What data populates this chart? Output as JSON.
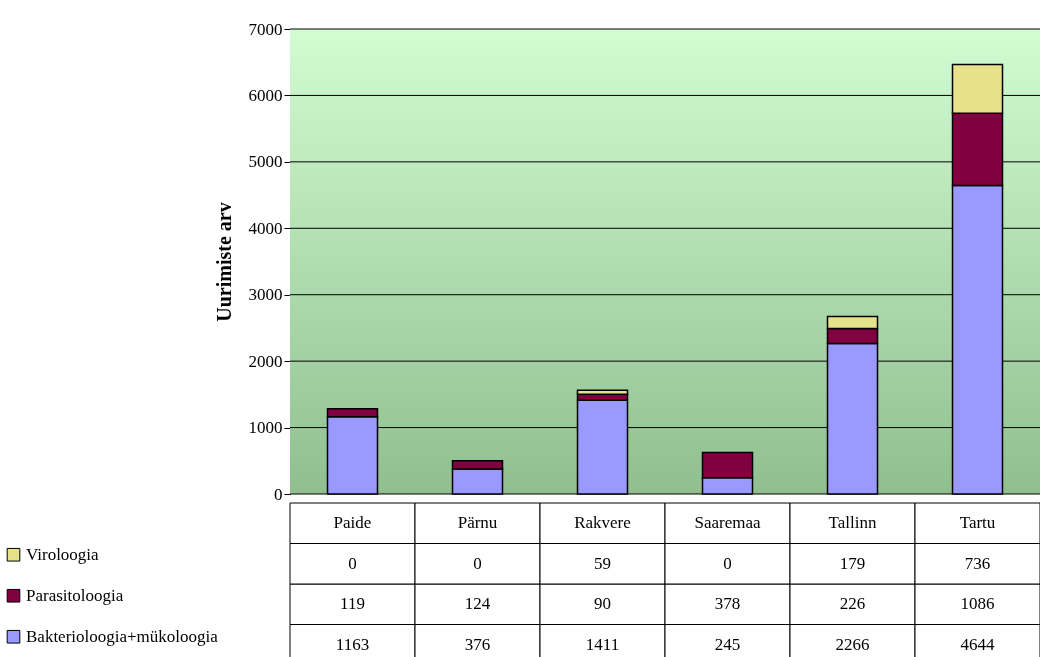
{
  "chart_data": {
    "type": "bar",
    "stacked": true,
    "ylabel": "Uurimiste arv",
    "categories": [
      "Paide",
      "Pärnu",
      "Rakvere",
      "Saaremaa",
      "Tallinn",
      "Tartu"
    ],
    "series": [
      {
        "name": "Bakterioloogia+mükoloogia",
        "color": "#9999ff",
        "values": [
          1163,
          376,
          1411,
          245,
          2266,
          4644
        ]
      },
      {
        "name": "Parasitoloogia",
        "color": "#800040",
        "values": [
          119,
          124,
          90,
          378,
          226,
          1086
        ]
      },
      {
        "name": "Viroloogia",
        "color": "#e6e28a",
        "values": [
          0,
          0,
          59,
          0,
          179,
          736
        ]
      }
    ],
    "ylim": [
      0,
      7000
    ],
    "yticks": [
      0,
      1000,
      2000,
      3000,
      4000,
      5000,
      6000,
      7000
    ],
    "grid": "y",
    "legend": "bottom left",
    "data_labels": true
  }
}
